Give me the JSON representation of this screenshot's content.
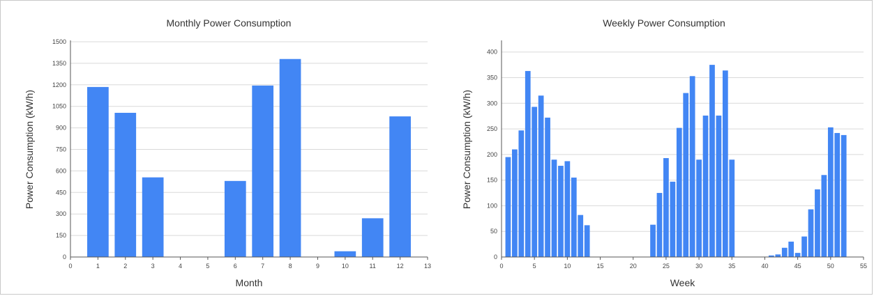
{
  "colors": {
    "bar": "#4286f4"
  },
  "chart_data": [
    {
      "type": "bar",
      "title": "Monthly Power Consumption",
      "xlabel": "Month",
      "ylabel": "Power Consumption (kW/h)",
      "xlim": [
        0,
        13
      ],
      "ylim": [
        0,
        1500
      ],
      "xticks": [
        "0",
        "1",
        "2",
        "3",
        "4",
        "5",
        "6",
        "7",
        "8",
        "9",
        "10",
        "11",
        "12",
        "13"
      ],
      "yticks": [
        "0",
        "150",
        "300",
        "450",
        "600",
        "750",
        "900",
        "1050",
        "1200",
        "1350",
        "1500"
      ],
      "grid": true,
      "x": [
        1,
        2,
        3,
        4,
        5,
        6,
        7,
        8,
        9,
        10,
        11,
        12
      ],
      "values": [
        1185,
        1005,
        555,
        0,
        0,
        530,
        1195,
        1380,
        0,
        40,
        270,
        980
      ]
    },
    {
      "type": "bar",
      "title": "Weekly Power Consumption",
      "xlabel": "Week",
      "ylabel": "Power Consumption (kW/h)",
      "xlim": [
        0,
        55
      ],
      "ylim": [
        0,
        420
      ],
      "xticks": [
        "0",
        "5",
        "10",
        "15",
        "20",
        "25",
        "30",
        "35",
        "40",
        "45",
        "50",
        "55"
      ],
      "yticks": [
        "0",
        "50",
        "100",
        "150",
        "200",
        "250",
        "300",
        "350",
        "400"
      ],
      "grid": true,
      "x": [
        1,
        2,
        3,
        4,
        5,
        6,
        7,
        8,
        9,
        10,
        11,
        12,
        13,
        14,
        15,
        16,
        17,
        18,
        19,
        20,
        21,
        22,
        23,
        24,
        25,
        26,
        27,
        28,
        29,
        30,
        31,
        32,
        33,
        34,
        35,
        36,
        37,
        38,
        39,
        40,
        41,
        42,
        43,
        44,
        45,
        46,
        47,
        48,
        49,
        50,
        51,
        52
      ],
      "values": [
        195,
        210,
        247,
        363,
        293,
        315,
        272,
        190,
        178,
        187,
        155,
        82,
        62,
        0,
        0,
        0,
        0,
        0,
        0,
        0,
        0,
        0,
        63,
        125,
        193,
        147,
        252,
        320,
        353,
        190,
        276,
        375,
        276,
        364,
        190,
        0,
        0,
        0,
        0,
        0,
        3,
        5,
        18,
        30,
        8,
        40,
        93,
        132,
        160,
        253,
        242,
        238
      ]
    }
  ]
}
